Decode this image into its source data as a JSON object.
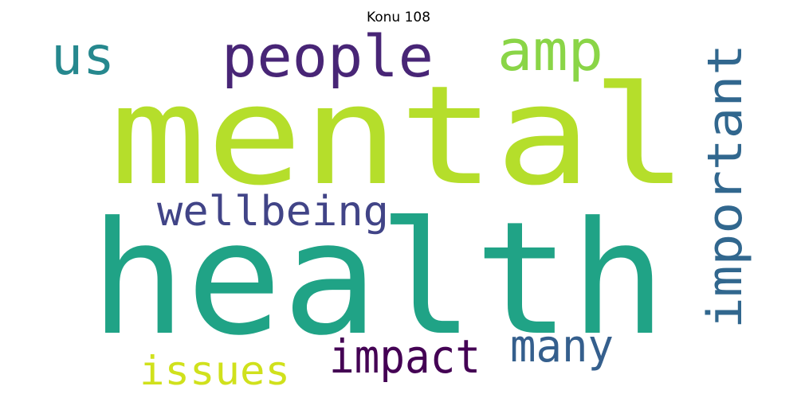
{
  "title": "Konu 108",
  "words": [
    {
      "text": "mental",
      "color": "#b5de2b"
    },
    {
      "text": "health",
      "color": "#20a386"
    },
    {
      "text": "people",
      "color": "#482576"
    },
    {
      "text": "us",
      "color": "#26888e"
    },
    {
      "text": "amp",
      "color": "#8ad547"
    },
    {
      "text": "important",
      "color": "#31678e"
    },
    {
      "text": "wellbeing",
      "color": "#414487"
    },
    {
      "text": "issues",
      "color": "#d0e11c"
    },
    {
      "text": "impact",
      "color": "#440154"
    },
    {
      "text": "many",
      "color": "#355f8d"
    }
  ]
}
